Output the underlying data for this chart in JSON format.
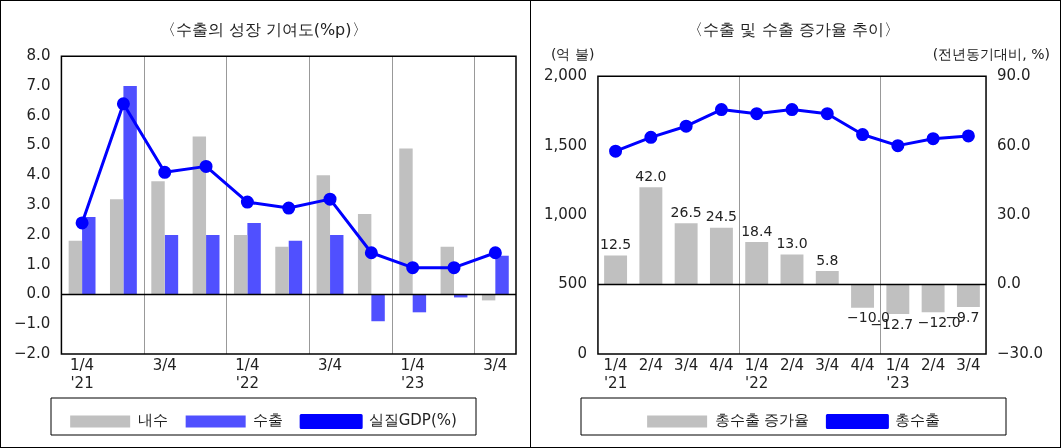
{
  "chart_data": [
    {
      "type": "bar",
      "title": "〈수출의 성장 기여도(%p)〉",
      "categories": [
        "1/4\n'21",
        null,
        "3/4",
        null,
        "1/4\n'22",
        null,
        "3/4",
        null,
        "1/4\n'23",
        null,
        "3/4"
      ],
      "series": [
        {
          "name": "내수",
          "color": "#c0c0c0",
          "values": [
            1.8,
            3.2,
            3.8,
            5.3,
            2.0,
            1.6,
            4.0,
            2.7,
            4.9,
            1.6,
            -0.2
          ]
        },
        {
          "name": "수출",
          "color": "#5050ff",
          "values": [
            2.6,
            7.0,
            2.0,
            2.0,
            2.4,
            1.8,
            2.0,
            -0.9,
            -0.6,
            -0.1,
            1.3
          ]
        },
        {
          "name": "실질GDP(%)",
          "type": "line",
          "color": "#0000ff",
          "marker": "circle",
          "line_style": "solid",
          "values": [
            2.4,
            6.4,
            4.1,
            4.3,
            3.1,
            2.9,
            3.2,
            1.4,
            0.9,
            0.9,
            1.4
          ]
        }
      ],
      "ylim": [
        -2,
        8
      ],
      "yticks": [
        {
          "value": -2,
          "label": "−2.0"
        },
        {
          "value": -1,
          "label": "−1.0"
        },
        {
          "value": 0,
          "label": "0.0"
        },
        {
          "value": 1,
          "label": "1.0"
        },
        {
          "value": 2,
          "label": "2.0"
        },
        {
          "value": 3,
          "label": "3.0"
        },
        {
          "value": 4,
          "label": "4.0"
        },
        {
          "value": 5,
          "label": "5.0"
        },
        {
          "value": 6,
          "label": "6.0"
        },
        {
          "value": 7,
          "label": "7.0"
        },
        {
          "value": 8,
          "label": "8.0"
        }
      ],
      "grid": "x",
      "legend": "bottom"
    },
    {
      "type": "bar",
      "title": "〈수출 및 수출 증가율 추이〉",
      "ylabel": "(억 불)",
      "y2label": "(전년동기대비, %)",
      "categories": [
        "1/4\n'21",
        "2/4",
        "3/4",
        "4/4",
        "1/4\n'22",
        "2/4",
        "3/4",
        "4/4",
        "1/4\n'23",
        "2/4",
        "3/4"
      ],
      "series": [
        {
          "name": "총수출 증가율",
          "axis": "y2",
          "color": "#c0c0c0",
          "values": [
            12.5,
            42.0,
            26.5,
            24.5,
            18.4,
            13.0,
            5.8,
            -10.0,
            -12.7,
            -12.0,
            -9.7
          ],
          "value_labels": [
            "12.5",
            "42.0",
            "26.5",
            "24.5",
            "18.4",
            "13.0",
            "5.8",
            "−10.0",
            "−12.7",
            "−12.0",
            "−9.7"
          ]
        },
        {
          "name": "총수출",
          "type": "line",
          "color": "#0000ff",
          "marker": "circle",
          "line_style": "solid",
          "values": [
            1460,
            1560,
            1640,
            1760,
            1730,
            1760,
            1730,
            1580,
            1500,
            1550,
            1570
          ]
        }
      ],
      "ylim": [
        0,
        2000
      ],
      "yticks": [
        0,
        500,
        {
          "value": 1000,
          "label": "1,000"
        },
        {
          "value": 1500,
          "label": "1,500"
        },
        {
          "value": 2000,
          "label": "2,000"
        }
      ],
      "y2lim": [
        -30,
        90
      ],
      "y2ticks": [
        {
          "value": -30,
          "label": "−30.0"
        },
        {
          "value": 0,
          "label": "0.0"
        },
        {
          "value": 30,
          "label": "30.0"
        },
        {
          "value": 60,
          "label": "60.0"
        },
        {
          "value": 90,
          "label": "90.0"
        }
      ],
      "grid": "x",
      "legend": "bottom"
    }
  ]
}
